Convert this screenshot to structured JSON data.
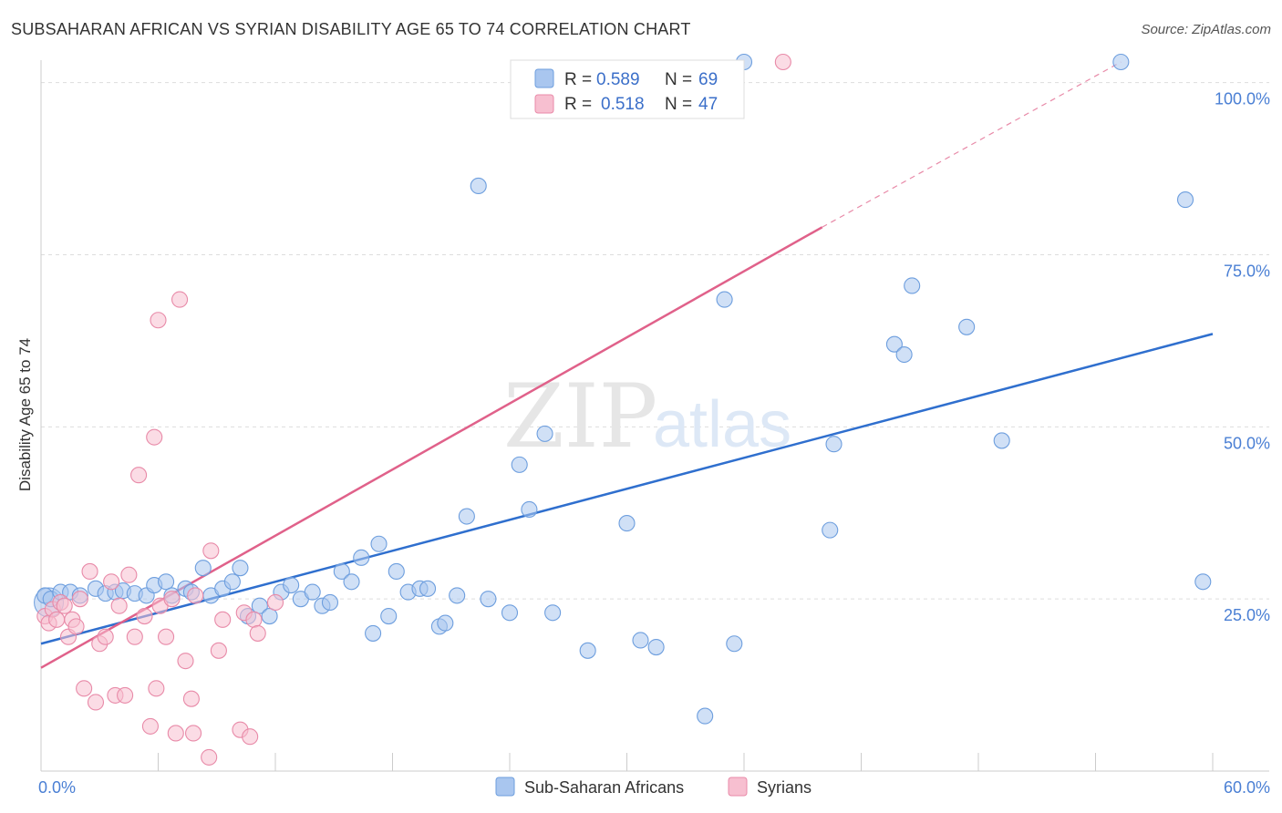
{
  "colors": {
    "blue_fill": "#a9c6ef",
    "blue_stroke": "#6d9ede",
    "blue_line": "#2f6fce",
    "pink_fill": "#f7bfd0",
    "pink_stroke": "#e88aa8",
    "pink_line": "#e0618a",
    "grid": "#dddddd",
    "tick_text": "#4a7fd4"
  },
  "chart_data": {
    "type": "scatter",
    "title": "SUBSAHARAN AFRICAN VS SYRIAN DISABILITY AGE 65 TO 74 CORRELATION CHART",
    "source": "Source: ZipAtlas.com",
    "xlabel": "",
    "ylabel": "Disability Age 65 to 74",
    "xlim": [
      0,
      60
    ],
    "ylim": [
      0,
      103
    ],
    "x_tick_labels": [
      "0.0%",
      "60.0%"
    ],
    "y_ticks": [
      25,
      50,
      75,
      100
    ],
    "y_tick_labels": [
      "25.0%",
      "50.0%",
      "75.0%",
      "100.0%"
    ],
    "watermark": [
      "ZIP",
      "atlas"
    ],
    "legend": {
      "entries": [
        {
          "r_label": "R =",
          "r_value": "0.589",
          "n_label": "N =",
          "n_value": "69"
        },
        {
          "r_label": "R =",
          "r_value": "0.518",
          "n_label": "N =",
          "n_value": "47"
        }
      ]
    },
    "series": [
      {
        "name": "Sub-Saharan Africans",
        "trend": {
          "x0": 0,
          "y0": 18.5,
          "x1": 60,
          "y1": 63.5
        },
        "points": [
          {
            "x": 0.2,
            "y": 25.5
          },
          {
            "x": 0.5,
            "y": 25
          },
          {
            "x": 1.0,
            "y": 26
          },
          {
            "x": 1.5,
            "y": 26
          },
          {
            "x": 2.0,
            "y": 25.5
          },
          {
            "x": 2.8,
            "y": 26.5
          },
          {
            "x": 3.3,
            "y": 25.8
          },
          {
            "x": 3.8,
            "y": 26
          },
          {
            "x": 4.2,
            "y": 26.2
          },
          {
            "x": 4.8,
            "y": 25.8
          },
          {
            "x": 5.4,
            "y": 25.5
          },
          {
            "x": 5.8,
            "y": 27
          },
          {
            "x": 6.4,
            "y": 27.5
          },
          {
            "x": 6.7,
            "y": 25.5
          },
          {
            "x": 7.4,
            "y": 26.5
          },
          {
            "x": 7.7,
            "y": 26
          },
          {
            "x": 8.3,
            "y": 29.5
          },
          {
            "x": 8.7,
            "y": 25.5
          },
          {
            "x": 9.3,
            "y": 26.5
          },
          {
            "x": 9.8,
            "y": 27.5
          },
          {
            "x": 10.2,
            "y": 29.5
          },
          {
            "x": 10.6,
            "y": 22.5
          },
          {
            "x": 11.2,
            "y": 24
          },
          {
            "x": 11.7,
            "y": 22.5
          },
          {
            "x": 12.3,
            "y": 26
          },
          {
            "x": 12.8,
            "y": 27
          },
          {
            "x": 13.3,
            "y": 25
          },
          {
            "x": 13.9,
            "y": 26
          },
          {
            "x": 14.4,
            "y": 24
          },
          {
            "x": 14.8,
            "y": 24.5
          },
          {
            "x": 15.4,
            "y": 29
          },
          {
            "x": 15.9,
            "y": 27.5
          },
          {
            "x": 16.4,
            "y": 31
          },
          {
            "x": 17.0,
            "y": 20
          },
          {
            "x": 17.3,
            "y": 33
          },
          {
            "x": 17.8,
            "y": 22.5
          },
          {
            "x": 18.2,
            "y": 29
          },
          {
            "x": 18.8,
            "y": 26
          },
          {
            "x": 19.4,
            "y": 26.5
          },
          {
            "x": 19.8,
            "y": 26.5
          },
          {
            "x": 20.4,
            "y": 21
          },
          {
            "x": 20.7,
            "y": 21.5
          },
          {
            "x": 21.3,
            "y": 25.5
          },
          {
            "x": 21.8,
            "y": 37
          },
          {
            "x": 22.4,
            "y": 85
          },
          {
            "x": 22.9,
            "y": 25
          },
          {
            "x": 24.0,
            "y": 23
          },
          {
            "x": 24.5,
            "y": 44.5
          },
          {
            "x": 25.0,
            "y": 38
          },
          {
            "x": 25.8,
            "y": 49
          },
          {
            "x": 26.2,
            "y": 23
          },
          {
            "x": 28.0,
            "y": 17.5
          },
          {
            "x": 30.0,
            "y": 36
          },
          {
            "x": 30.7,
            "y": 19
          },
          {
            "x": 31.5,
            "y": 18
          },
          {
            "x": 34.0,
            "y": 8
          },
          {
            "x": 35.0,
            "y": 68.5
          },
          {
            "x": 35.5,
            "y": 18.5
          },
          {
            "x": 36.0,
            "y": 103
          },
          {
            "x": 40.4,
            "y": 35
          },
          {
            "x": 40.6,
            "y": 47.5
          },
          {
            "x": 43.7,
            "y": 62
          },
          {
            "x": 44.2,
            "y": 60.5
          },
          {
            "x": 44.6,
            "y": 70.5
          },
          {
            "x": 47.4,
            "y": 64.5
          },
          {
            "x": 49.2,
            "y": 48
          },
          {
            "x": 55.3,
            "y": 103
          },
          {
            "x": 58.6,
            "y": 83
          },
          {
            "x": 59.5,
            "y": 27.5
          }
        ]
      },
      {
        "name": "Syrians",
        "trend": {
          "x0": 0,
          "y0": 15,
          "x1": 40,
          "y1": 79
        },
        "trend_dashed": {
          "x0": 40,
          "y0": 79,
          "x1": 55.3,
          "y1": 103
        },
        "points": [
          {
            "x": 0.2,
            "y": 22.5
          },
          {
            "x": 0.4,
            "y": 21.5
          },
          {
            "x": 0.6,
            "y": 23.5
          },
          {
            "x": 0.8,
            "y": 22
          },
          {
            "x": 1.0,
            "y": 24.5
          },
          {
            "x": 1.2,
            "y": 24
          },
          {
            "x": 1.4,
            "y": 19.5
          },
          {
            "x": 1.6,
            "y": 22
          },
          {
            "x": 1.8,
            "y": 21
          },
          {
            "x": 2.0,
            "y": 25
          },
          {
            "x": 2.2,
            "y": 12
          },
          {
            "x": 2.5,
            "y": 29
          },
          {
            "x": 2.8,
            "y": 10
          },
          {
            "x": 3.0,
            "y": 18.5
          },
          {
            "x": 3.3,
            "y": 19.5
          },
          {
            "x": 3.6,
            "y": 27.5
          },
          {
            "x": 3.8,
            "y": 11
          },
          {
            "x": 4.0,
            "y": 24
          },
          {
            "x": 4.3,
            "y": 11
          },
          {
            "x": 4.5,
            "y": 28.5
          },
          {
            "x": 4.8,
            "y": 19.5
          },
          {
            "x": 5.0,
            "y": 43
          },
          {
            "x": 5.3,
            "y": 22.5
          },
          {
            "x": 5.6,
            "y": 6.5
          },
          {
            "x": 5.8,
            "y": 48.5
          },
          {
            "x": 5.9,
            "y": 12
          },
          {
            "x": 6.1,
            "y": 24
          },
          {
            "x": 6.0,
            "y": 65.5
          },
          {
            "x": 6.4,
            "y": 19.5
          },
          {
            "x": 6.7,
            "y": 25
          },
          {
            "x": 6.9,
            "y": 5.5
          },
          {
            "x": 7.1,
            "y": 68.5
          },
          {
            "x": 7.4,
            "y": 16
          },
          {
            "x": 7.7,
            "y": 10.5
          },
          {
            "x": 7.9,
            "y": 25.5
          },
          {
            "x": 7.8,
            "y": 5.5
          },
          {
            "x": 8.6,
            "y": 2
          },
          {
            "x": 8.7,
            "y": 32
          },
          {
            "x": 9.1,
            "y": 17.5
          },
          {
            "x": 9.3,
            "y": 22
          },
          {
            "x": 10.2,
            "y": 6
          },
          {
            "x": 10.4,
            "y": 23
          },
          {
            "x": 10.7,
            "y": 5
          },
          {
            "x": 10.9,
            "y": 22
          },
          {
            "x": 11.1,
            "y": 20
          },
          {
            "x": 12.0,
            "y": 24.5
          },
          {
            "x": 38.0,
            "y": 103
          }
        ]
      }
    ]
  },
  "bottom_legend": [
    {
      "label": "Sub-Saharan Africans"
    },
    {
      "label": "Syrians"
    }
  ]
}
